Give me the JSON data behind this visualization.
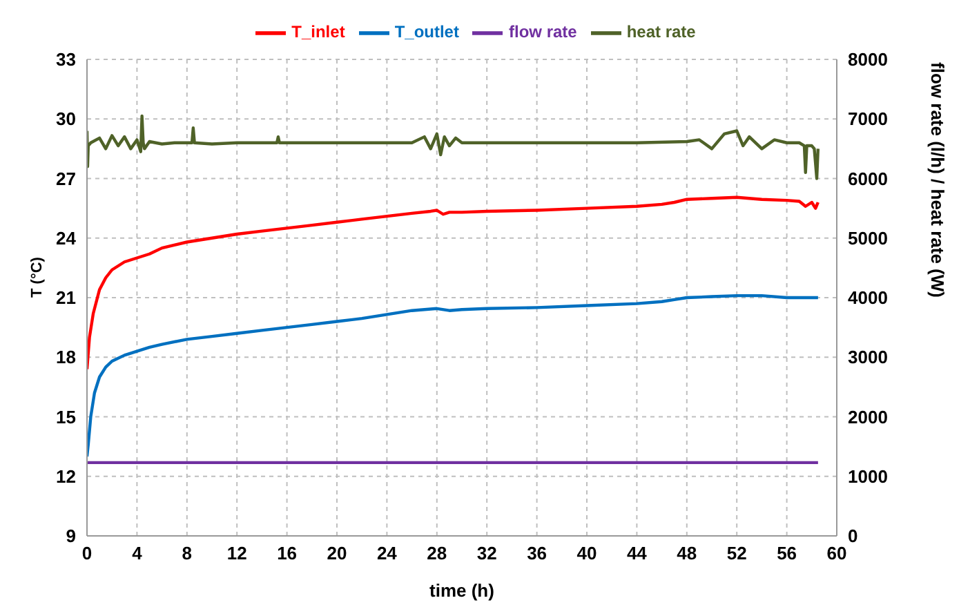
{
  "chart_data": {
    "type": "line",
    "xlabel": "time (h)",
    "ylabel": "T (°C)",
    "y2label": "flow rate (l/h) / heat rate (W)",
    "xlim": [
      0,
      60
    ],
    "xticks": [
      0,
      4,
      8,
      12,
      16,
      20,
      24,
      28,
      32,
      36,
      40,
      44,
      48,
      52,
      56,
      60
    ],
    "ylim": [
      9,
      33
    ],
    "yticks": [
      9,
      12,
      15,
      18,
      21,
      24,
      27,
      30,
      33
    ],
    "y2lim": [
      0,
      8000
    ],
    "y2ticks": [
      0,
      1000,
      2000,
      3000,
      4000,
      5000,
      6000,
      7000,
      8000
    ],
    "grid": true,
    "legend": "top",
    "marker": "none",
    "line_style": "solid",
    "series": [
      {
        "name": "T_inlet",
        "color": "#ff0000",
        "x": [
          0,
          0.2,
          0.5,
          1,
          1.5,
          2,
          3,
          4,
          5,
          6,
          8,
          10,
          12,
          14,
          16,
          18,
          20,
          22,
          24,
          26,
          27.5,
          28,
          28.5,
          29,
          30,
          32,
          36,
          40,
          44,
          46,
          47,
          48,
          50,
          52,
          54,
          56,
          57,
          57.5,
          58,
          58.3,
          58.5
        ],
        "values": [
          17.4,
          19,
          20.2,
          21.4,
          22,
          22.4,
          22.8,
          23,
          23.2,
          23.5,
          23.8,
          24,
          24.2,
          24.35,
          24.5,
          24.65,
          24.8,
          24.95,
          25.1,
          25.25,
          25.35,
          25.4,
          25.2,
          25.3,
          25.3,
          25.35,
          25.4,
          25.5,
          25.6,
          25.7,
          25.8,
          25.95,
          26,
          26.05,
          25.95,
          25.9,
          25.85,
          25.6,
          25.8,
          25.5,
          25.8
        ]
      },
      {
        "name": "T_outlet",
        "color": "#0070c0",
        "x": [
          0,
          0.1,
          0.3,
          0.6,
          1,
          1.5,
          2,
          3,
          4,
          5,
          6,
          8,
          10,
          12,
          14,
          16,
          18,
          20,
          22,
          24,
          26,
          28,
          29,
          30,
          32,
          36,
          40,
          44,
          46,
          47,
          48,
          50,
          52,
          54,
          56,
          58.5
        ],
        "values": [
          13,
          13.6,
          15,
          16.2,
          17,
          17.5,
          17.8,
          18.1,
          18.3,
          18.5,
          18.65,
          18.9,
          19.05,
          19.2,
          19.35,
          19.5,
          19.65,
          19.8,
          19.95,
          20.15,
          20.35,
          20.45,
          20.35,
          20.4,
          20.45,
          20.5,
          20.6,
          20.7,
          20.8,
          20.9,
          21,
          21.05,
          21.1,
          21.1,
          21,
          21
        ]
      },
      {
        "name": "flow rate",
        "color": "#7030a0",
        "axis": "y2",
        "x": [
          0,
          58.5
        ],
        "values": [
          1230,
          1230
        ]
      },
      {
        "name": "heat rate",
        "color": "#4f6228",
        "axis": "y2",
        "x": [
          0,
          0.05,
          0.1,
          0.3,
          1,
          1.5,
          2,
          2.5,
          3,
          3.5,
          4,
          4.3,
          4.4,
          4.5,
          4.6,
          5,
          6,
          7,
          8,
          8.4,
          8.5,
          8.6,
          10,
          12,
          15,
          15.2,
          15.3,
          15.4,
          18,
          22,
          26,
          27,
          27.5,
          28,
          28.3,
          28.6,
          29,
          29.5,
          30,
          32,
          36,
          40,
          44,
          48,
          49,
          50,
          51,
          52,
          52.5,
          53,
          54,
          55,
          56,
          57,
          57.4,
          57.5,
          57.6,
          58,
          58.2,
          58.4,
          58.5
        ],
        "values": [
          6800,
          6200,
          6550,
          6600,
          6680,
          6500,
          6720,
          6550,
          6700,
          6500,
          6650,
          6450,
          7050,
          6600,
          6500,
          6620,
          6580,
          6600,
          6600,
          6600,
          6850,
          6600,
          6580,
          6600,
          6600,
          6600,
          6700,
          6600,
          6600,
          6600,
          6600,
          6700,
          6500,
          6750,
          6400,
          6700,
          6550,
          6680,
          6600,
          6600,
          6600,
          6600,
          6600,
          6620,
          6650,
          6500,
          6750,
          6800,
          6550,
          6700,
          6500,
          6650,
          6600,
          6600,
          6550,
          6100,
          6550,
          6550,
          6500,
          6000,
          6500
        ]
      }
    ]
  }
}
